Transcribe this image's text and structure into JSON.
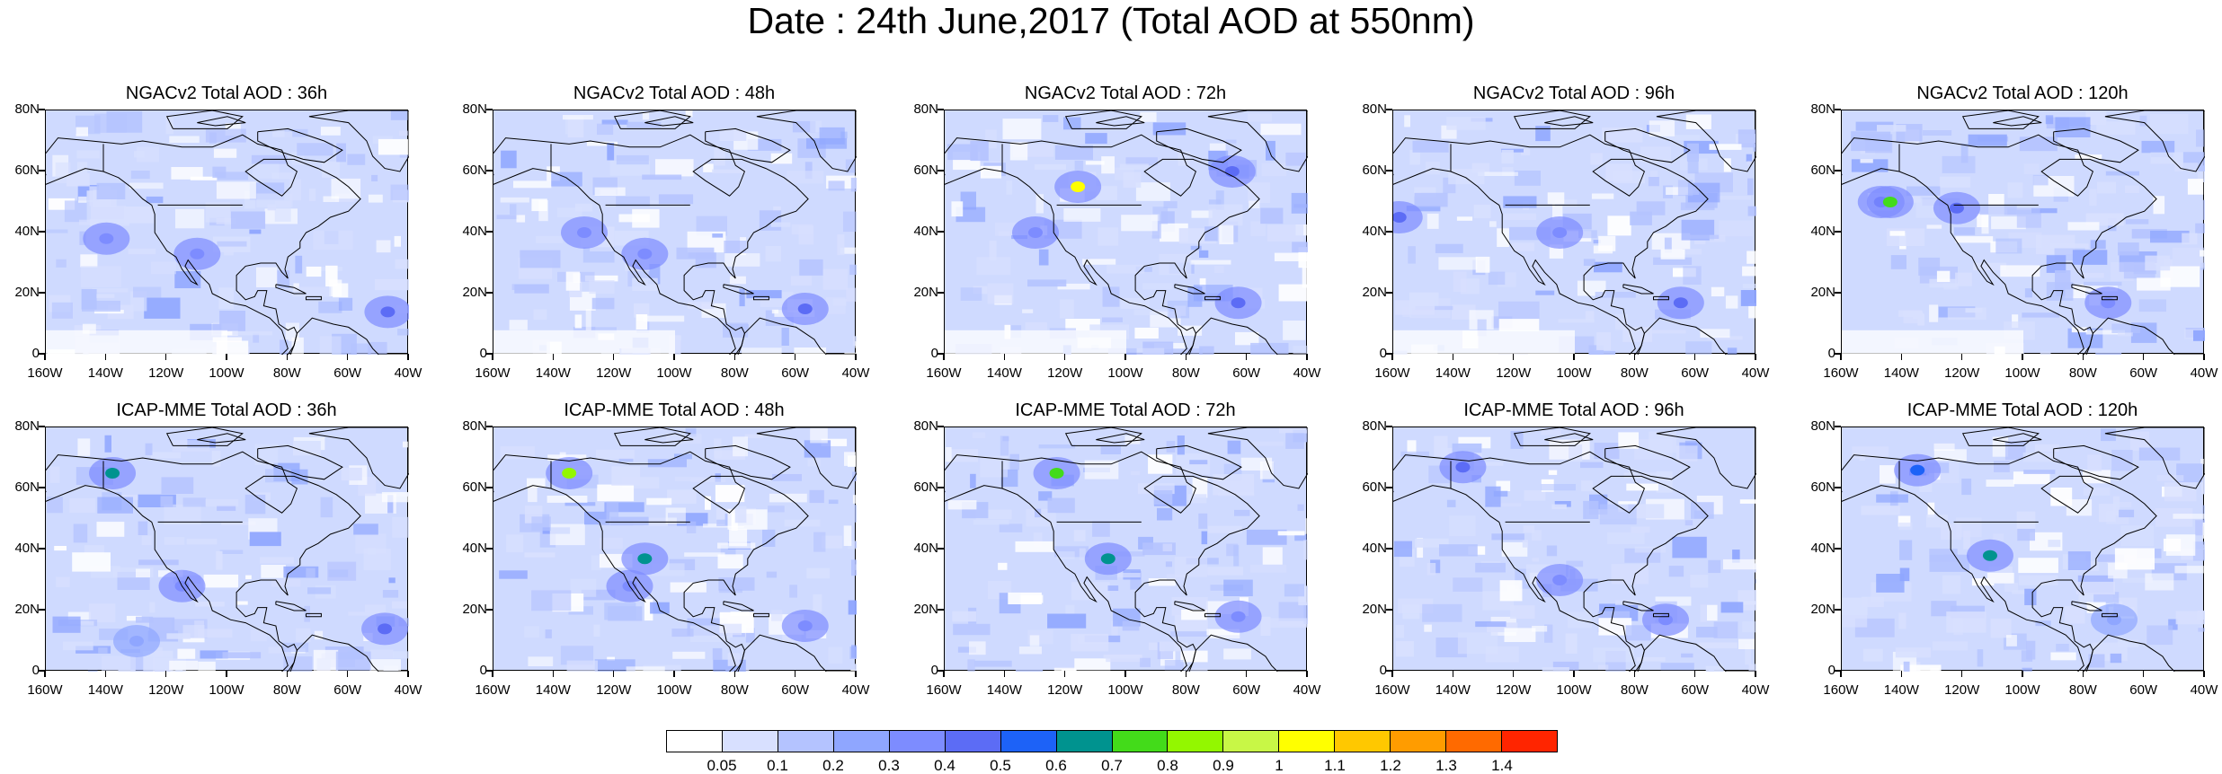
{
  "title": "Date : 24th June,2017 (Total AOD at 550nm)",
  "lat_ticks": [
    "80N",
    "60N",
    "40N",
    "20N",
    "0"
  ],
  "lon_ticks": [
    "160W",
    "140W",
    "120W",
    "100W",
    "80W",
    "60W",
    "40W"
  ],
  "panels": [
    {
      "title": "NGACv2 Total AOD : 36h",
      "model": "NGACv2",
      "lead": "36h",
      "hotspots": [
        {
          "lon": -47,
          "lat": 14,
          "level": 5
        },
        {
          "lon": -140,
          "lat": 38,
          "level": 4
        },
        {
          "lon": -110,
          "lat": 33,
          "level": 4
        }
      ]
    },
    {
      "title": "NGACv2 Total AOD : 48h",
      "model": "NGACv2",
      "lead": "48h",
      "hotspots": [
        {
          "lon": -57,
          "lat": 15,
          "level": 5
        },
        {
          "lon": -130,
          "lat": 40,
          "level": 4
        },
        {
          "lon": -110,
          "lat": 33,
          "level": 4
        }
      ]
    },
    {
      "title": "NGACv2 Total AOD : 72h",
      "model": "NGACv2",
      "lead": "72h",
      "hotspots": [
        {
          "lon": -116,
          "lat": 55,
          "level": 11
        },
        {
          "lon": -65,
          "lat": 60,
          "level": 5
        },
        {
          "lon": -63,
          "lat": 17,
          "level": 5
        },
        {
          "lon": -130,
          "lat": 40,
          "level": 4
        }
      ]
    },
    {
      "title": "NGACv2 Total AOD : 96h",
      "model": "NGACv2",
      "lead": "96h",
      "hotspots": [
        {
          "lon": -158,
          "lat": 45,
          "level": 5
        },
        {
          "lon": -65,
          "lat": 17,
          "level": 5
        },
        {
          "lon": -105,
          "lat": 40,
          "level": 4
        }
      ]
    },
    {
      "title": "NGACv2 Total AOD : 120h",
      "model": "NGACv2",
      "lead": "120h",
      "hotspots": [
        {
          "lon": -147,
          "lat": 50,
          "level": 5
        },
        {
          "lon": -144,
          "lat": 50,
          "level": 8
        },
        {
          "lon": -122,
          "lat": 48,
          "level": 5
        },
        {
          "lon": -72,
          "lat": 17,
          "level": 4
        }
      ]
    },
    {
      "title": "ICAP-MME Total AOD : 36h",
      "model": "ICAP-MME",
      "lead": "36h",
      "hotspots": [
        {
          "lon": -138,
          "lat": 65,
          "level": 7
        },
        {
          "lon": -48,
          "lat": 14,
          "level": 5
        },
        {
          "lon": -115,
          "lat": 28,
          "level": 4
        },
        {
          "lon": -130,
          "lat": 10,
          "level": 3
        }
      ]
    },
    {
      "title": "ICAP-MME Total AOD : 48h",
      "model": "ICAP-MME",
      "lead": "48h",
      "hotspots": [
        {
          "lon": -135,
          "lat": 65,
          "level": 9
        },
        {
          "lon": -110,
          "lat": 37,
          "level": 7
        },
        {
          "lon": -57,
          "lat": 15,
          "level": 4
        },
        {
          "lon": -115,
          "lat": 28,
          "level": 4
        }
      ]
    },
    {
      "title": "ICAP-MME Total AOD : 72h",
      "model": "ICAP-MME",
      "lead": "72h",
      "hotspots": [
        {
          "lon": -123,
          "lat": 65,
          "level": 8
        },
        {
          "lon": -106,
          "lat": 37,
          "level": 7
        },
        {
          "lon": -63,
          "lat": 18,
          "level": 4
        }
      ]
    },
    {
      "title": "ICAP-MME Total AOD : 96h",
      "model": "ICAP-MME",
      "lead": "96h",
      "hotspots": [
        {
          "lon": -137,
          "lat": 67,
          "level": 5
        },
        {
          "lon": -105,
          "lat": 30,
          "level": 4
        },
        {
          "lon": -70,
          "lat": 17,
          "level": 4
        }
      ]
    },
    {
      "title": "ICAP-MME Total AOD : 120h",
      "model": "ICAP-MME",
      "lead": "120h",
      "hotspots": [
        {
          "lon": -135,
          "lat": 66,
          "level": 6
        },
        {
          "lon": -111,
          "lat": 38,
          "level": 7
        },
        {
          "lon": -70,
          "lat": 17,
          "level": 3
        }
      ]
    }
  ],
  "colorbar": {
    "labels": [
      "0.05",
      "0.1",
      "0.2",
      "0.3",
      "0.4",
      "0.5",
      "0.6",
      "0.7",
      "0.8",
      "0.9",
      "1",
      "1.1",
      "1.2",
      "1.3",
      "1.4"
    ],
    "colors": [
      "#ffffff",
      "#d8e0ff",
      "#b4c3ff",
      "#8fa6ff",
      "#7d8cff",
      "#5c6cf5",
      "#1d62f7",
      "#00938f",
      "#43db1a",
      "#93f700",
      "#c8f746",
      "#ffff00",
      "#ffc800",
      "#ff9c00",
      "#ff6a00",
      "#ff2500"
    ]
  }
}
